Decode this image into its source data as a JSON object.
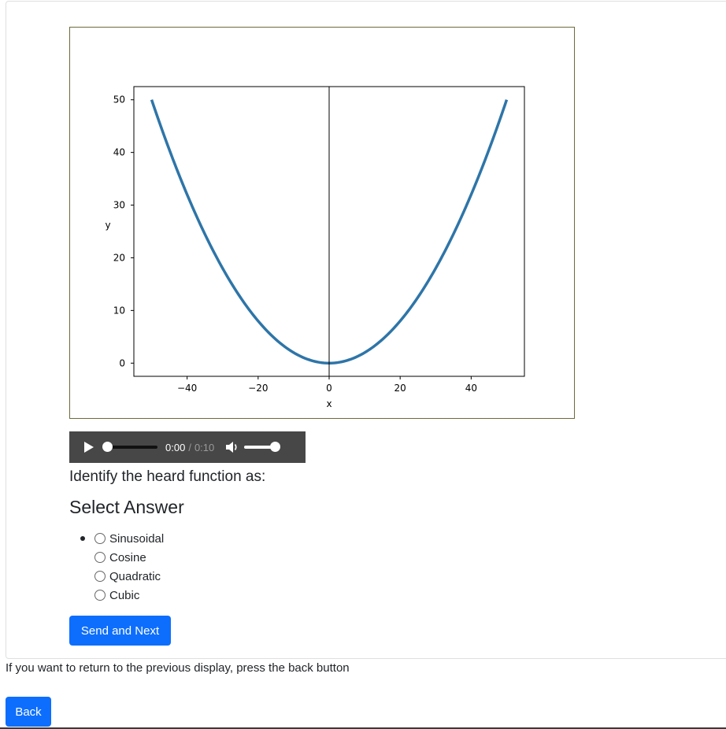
{
  "chart_data": {
    "type": "line",
    "xlabel": "x",
    "ylabel": "y",
    "xlim": [
      -55,
      55
    ],
    "ylim": [
      -2.5,
      52.5
    ],
    "xticks": [
      -40,
      -20,
      0,
      20,
      40
    ],
    "xtick_labels": [
      "−40",
      "−20",
      "0",
      "20",
      "40"
    ],
    "yticks": [
      0,
      10,
      20,
      30,
      40,
      50
    ],
    "ytick_labels": [
      "0",
      "10",
      "20",
      "30",
      "40",
      "50"
    ],
    "series": [
      {
        "color": "#2e75a8",
        "x_range": [
          -50,
          50
        ],
        "function": "0.02*x^2",
        "x": [
          -50,
          -40,
          -30,
          -20,
          -10,
          0,
          10,
          20,
          30,
          40,
          50
        ],
        "y": [
          50,
          32,
          18,
          8,
          2,
          0,
          2,
          8,
          18,
          32,
          50
        ]
      }
    ],
    "vertical_line_x": 0,
    "grid": false
  },
  "audio": {
    "current_time": "0:00",
    "separator": "/",
    "duration": "0:10"
  },
  "question": {
    "prompt": "Identify the heard function as:",
    "title": "Select Answer",
    "options": [
      "Sinusoidal",
      "Cosine",
      "Quadratic",
      "Cubic"
    ]
  },
  "buttons": {
    "send_next": "Send and Next",
    "back": "Back"
  },
  "back_note": "If you want to return to the previous display, press the back button",
  "colors": {
    "primary": "#0d6efd",
    "audio_bg": "#474747"
  }
}
